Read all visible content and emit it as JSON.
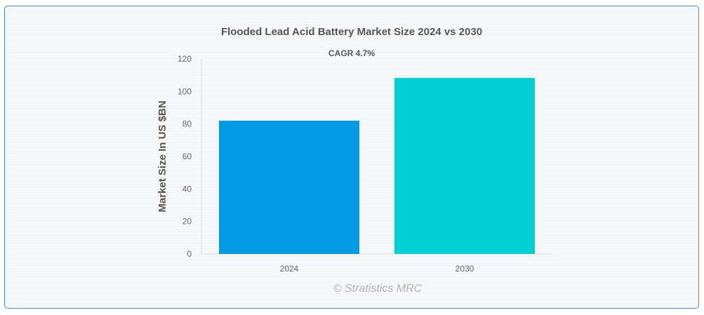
{
  "chart_data": {
    "type": "bar",
    "title": "Flooded Lead Acid Battery Market Size 2024 vs 2030",
    "subtitle": "CAGR 4.7%",
    "categories": [
      "2024",
      "2030"
    ],
    "values": [
      82,
      108.3
    ],
    "colors": [
      "#039be5",
      "#00d0d3"
    ],
    "ylabel": "Market Size In US $BN",
    "xlabel": "",
    "ylim": [
      0,
      120
    ],
    "yticks": [
      0,
      20,
      40,
      60,
      80,
      100,
      120
    ],
    "grid": false,
    "legend": "none",
    "credit": "© Stratistics MRC"
  }
}
